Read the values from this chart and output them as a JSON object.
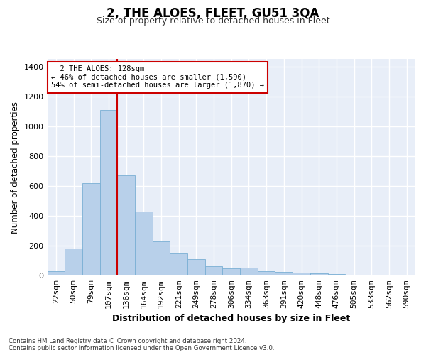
{
  "title": "2, THE ALOES, FLEET, GU51 3QA",
  "subtitle": "Size of property relative to detached houses in Fleet",
  "xlabel": "Distribution of detached houses by size in Fleet",
  "ylabel": "Number of detached properties",
  "categories": [
    "22sqm",
    "50sqm",
    "79sqm",
    "107sqm",
    "136sqm",
    "164sqm",
    "192sqm",
    "221sqm",
    "249sqm",
    "278sqm",
    "306sqm",
    "334sqm",
    "363sqm",
    "391sqm",
    "420sqm",
    "448sqm",
    "476sqm",
    "505sqm",
    "533sqm",
    "562sqm",
    "590sqm"
  ],
  "values": [
    30,
    180,
    620,
    1110,
    670,
    430,
    230,
    150,
    110,
    65,
    50,
    55,
    30,
    25,
    20,
    15,
    12,
    8,
    5,
    4,
    3
  ],
  "bar_color": "#b8d0ea",
  "bar_edge_color": "#7aafd4",
  "background_color": "#e8eef8",
  "grid_color": "#ffffff",
  "annotation_box_color": "#cc0000",
  "property_line_color": "#cc0000",
  "property_label": "2 THE ALOES: 128sqm",
  "smaller_pct": "46%",
  "smaller_count": "1,590",
  "larger_pct": "54%",
  "larger_count": "1,870",
  "property_bin_index": 4,
  "ylim": [
    0,
    1450
  ],
  "yticks": [
    0,
    200,
    400,
    600,
    800,
    1000,
    1200,
    1400
  ],
  "footer_line1": "Contains HM Land Registry data © Crown copyright and database right 2024.",
  "footer_line2": "Contains public sector information licensed under the Open Government Licence v3.0."
}
